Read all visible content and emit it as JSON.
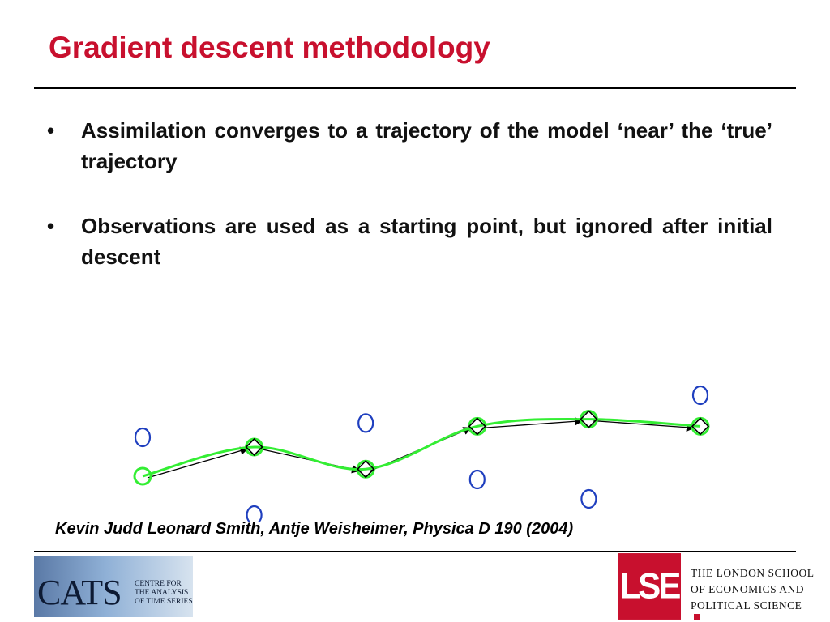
{
  "slide": {
    "title": "Gradient descent methodology",
    "bullet_glyph": "•",
    "bullets": [
      "Assimilation converges to a trajectory of the model ‘near’ the ‘true’ trajectory",
      "Observations are used as a starting point, but ignored after initial descent"
    ],
    "citation": "Kevin Judd Leonard Smith, Antje Weisheimer, Physica D 190 (2004)"
  },
  "logos": {
    "cats": {
      "word": "CATS",
      "subtitle_lines": [
        "CENTRE FOR",
        "THE ANALYSIS",
        "OF TIME SERIES"
      ]
    },
    "lse": {
      "mark": "LSE",
      "lines": [
        "THE LONDON SCHOOL",
        "OF ECONOMICS AND",
        "POLITICAL SCIENCE"
      ],
      "brand_color": "#c8102e"
    }
  },
  "colors": {
    "title": "#c8102e",
    "observation_marker": "#1f3fbf",
    "trajectory_line": "#33ee33",
    "descent_arrow": "#000000"
  },
  "diagram": {
    "description_free": true,
    "observation_icon": "circle-icon",
    "trajectory_icon": "diamond-icon",
    "time_steps": [
      0,
      1,
      2,
      3,
      4,
      5
    ],
    "observations": [
      {
        "t": 0,
        "value": 0.6
      },
      {
        "t": 1,
        "value": -0.6
      },
      {
        "t": 2,
        "value": 0.82
      },
      {
        "t": 3,
        "value": -0.05
      },
      {
        "t": 4,
        "value": -0.35
      },
      {
        "t": 5,
        "value": 1.25
      }
    ],
    "trajectory": [
      {
        "t": 0,
        "value": 0.0
      },
      {
        "t": 1,
        "value": 0.45
      },
      {
        "t": 2,
        "value": 0.11
      },
      {
        "t": 3,
        "value": 0.77
      },
      {
        "t": 4,
        "value": 0.88
      },
      {
        "t": 5,
        "value": 0.77
      }
    ]
  }
}
